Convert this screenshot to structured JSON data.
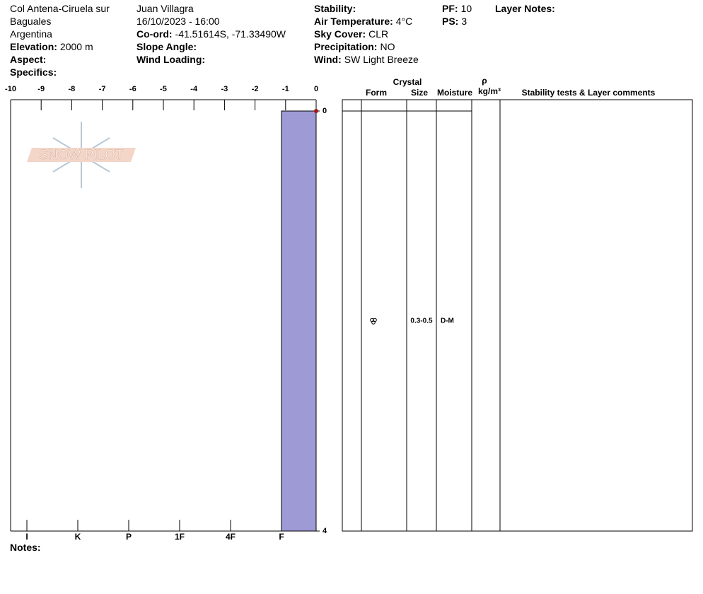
{
  "header": {
    "site": [
      "Col Antena-Ciruela sur",
      "Baguales",
      "Argentina"
    ],
    "observer": "Juan Villagra",
    "datetime": "16/10/2023 - 16:00",
    "elevation": {
      "label": "Elevation:",
      "value": "2000 m"
    },
    "aspect": {
      "label": "Aspect:"
    },
    "specifics": {
      "label": "Specifics:"
    },
    "coord": {
      "label": "Co-ord:",
      "value": "-41.51614S, -71.33490W"
    },
    "slope_angle": {
      "label": "Slope Angle:"
    },
    "wind_loading": {
      "label": "Wind Loading:"
    },
    "stability": {
      "label": "Stability:"
    },
    "air_temperature": {
      "label": "Air Temperature:",
      "value": "4°C"
    },
    "sky_cover": {
      "label": "Sky Cover:",
      "value": "CLR"
    },
    "precipitation": {
      "label": "Precipitation:",
      "value": "NO"
    },
    "wind": {
      "label": "Wind:",
      "value": "SW Light Breeze"
    },
    "pf": {
      "label": "PF:",
      "value": "10"
    },
    "ps": {
      "label": "PS:",
      "value": "3"
    },
    "layer_notes": {
      "label": "Layer Notes:"
    }
  },
  "notes_label": "Notes:",
  "logo": "SNOW PILOT",
  "chart_data": {
    "type": "snow-profile",
    "xlim": [
      -10,
      0
    ],
    "xticks": [
      -10,
      -9,
      -8,
      -7,
      -6,
      -5,
      -4,
      -3,
      -2,
      -1,
      0
    ],
    "ylim": [
      0,
      4
    ],
    "yticks": [
      0,
      4
    ],
    "hardness_scale": [
      "I",
      "K",
      "P",
      "1F",
      "4F",
      "F"
    ],
    "layers": [
      {
        "top": 0,
        "bottom": 4,
        "hardness": "F",
        "color": "#9e9ad6",
        "size": "0.3-0.5",
        "moisture": "D-M"
      }
    ],
    "temperature": {
      "depth": [
        0
      ],
      "values": [
        0
      ],
      "color": "#a01818"
    },
    "table_headers": {
      "crystal": "Crystal",
      "form": "Form",
      "size": "Size",
      "moisture": "Moisture",
      "density_symbol": "ρ",
      "density_unit": "kg/m³",
      "comments": "Stability tests & Layer comments"
    }
  }
}
